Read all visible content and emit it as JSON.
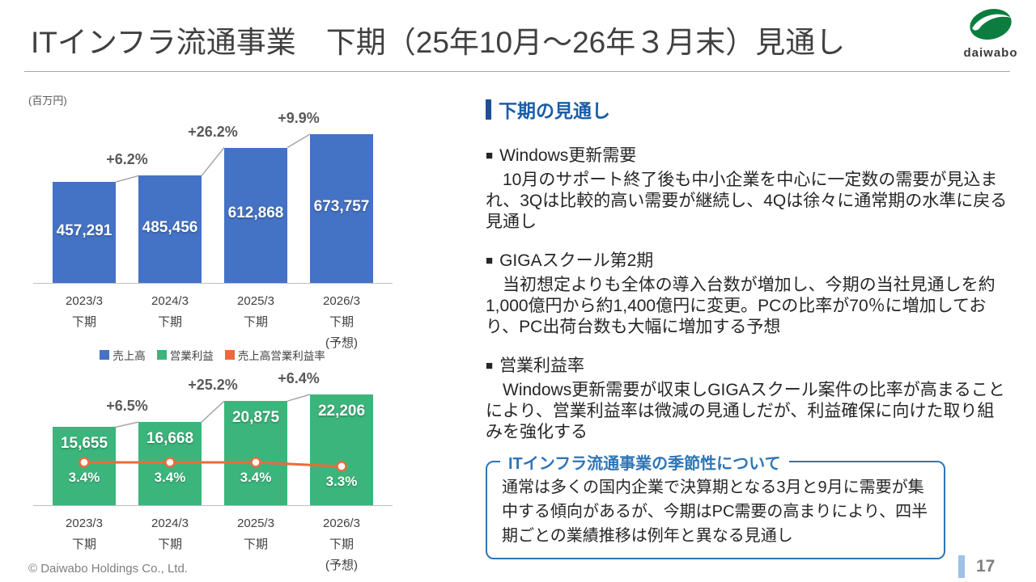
{
  "slide": {
    "title": "ITインフラ流通事業　下期（25年10月～26年３月末）見通し",
    "footer": "© Daiwabo Holdings Co., Ltd.",
    "page_number": "17",
    "logo_text": "daiwabo"
  },
  "colors": {
    "revenue_bar": "#4472C4",
    "profit_bar": "#3BB57B",
    "margin_line": "#ED6A3C",
    "heading_blue": "#1A5DA6",
    "heading_bar": "#1F4E97",
    "box_border": "#2E75B6",
    "page_accent": "#9DC3E6"
  },
  "legend": [
    {
      "label": "売上高",
      "color": "#4472C4"
    },
    {
      "label": "営業利益",
      "color": "#3BB57B"
    },
    {
      "label": "売上高営業利益率",
      "color": "#ED6A3C"
    }
  ],
  "chart_data": [
    {
      "type": "bar",
      "name": "revenue",
      "unit": "(百万円)",
      "categories": [
        [
          "2023/3",
          "下期"
        ],
        [
          "2024/3",
          "下期"
        ],
        [
          "2025/3",
          "下期"
        ],
        [
          "2026/3",
          "下期",
          "(予想)"
        ]
      ],
      "values": [
        457291,
        485456,
        612868,
        673757
      ],
      "value_labels": [
        "457,291",
        "485,456",
        "612,868",
        "673,757"
      ],
      "growth_labels": [
        "+6.2%",
        "+26.2%",
        "+9.9%"
      ],
      "bar_color": "#4472C4",
      "ylim": [
        0,
        700000
      ],
      "grid": false,
      "legend_position": "below"
    },
    {
      "type": "bar",
      "name": "operating-profit",
      "categories": [
        [
          "2023/3",
          "下期"
        ],
        [
          "2024/3",
          "下期"
        ],
        [
          "2025/3",
          "下期"
        ],
        [
          "2026/3",
          "下期",
          "(予想)"
        ]
      ],
      "values": [
        15655,
        16668,
        20875,
        22206
      ],
      "value_labels": [
        "15,655",
        "16,668",
        "20,875",
        "22,206"
      ],
      "growth_labels": [
        "+6.5%",
        "+25.2%",
        "+6.4%"
      ],
      "bar_color": "#3BB57B",
      "ylim": [
        0,
        23000
      ],
      "grid": false,
      "line": {
        "name": "売上高営業利益率",
        "values": [
          3.4,
          3.4,
          3.4,
          3.3
        ],
        "labels": [
          "3.4%",
          "3.4%",
          "3.4%",
          "3.3%"
        ],
        "ref_value": 3.4,
        "color": "#ED6A3C"
      }
    }
  ],
  "panel": {
    "heading": "下期の見通し",
    "bullet": "■",
    "sections": [
      {
        "title": "Windows更新需要",
        "body": "　10月のサポート終了後も中小企業を中心に一定数の需要が見込まれ、3Qは比較的高い需要が継続し、4Qは徐々に通常期の水準に戻る見通し"
      },
      {
        "title": "GIGAスクール第2期",
        "body": "　当初想定よりも全体の導入台数が増加し、今期の当社見通しを約1,000億円から約1,400億円に変更。PCの比率が70％に増加しており、PC出荷台数も大幅に増加する予想"
      },
      {
        "title": "営業利益率",
        "body": "　Windows更新需要が収束しGIGAスクール案件の比率が高まることにより、営業利益率は微減の見通しだが、利益確保に向けた取り組みを強化する"
      }
    ],
    "season_box": {
      "title": "ITインフラ流通事業の季節性について",
      "body": "通常は多くの国内企業で決算期となる3月と9月に需要が集中する傾向があるが、今期はPC需要の高まりにより、四半期ごとの業績推移は例年と異なる見通し"
    }
  }
}
